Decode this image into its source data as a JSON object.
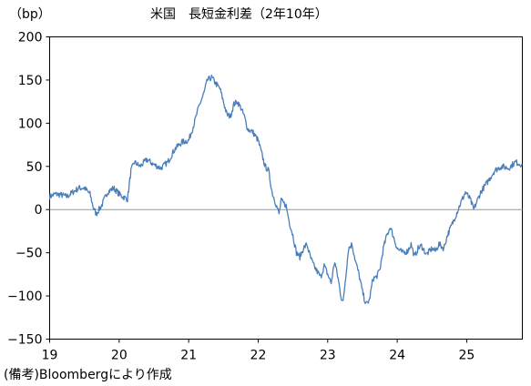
{
  "chart_data": {
    "type": "line",
    "title": "米国　長短金利差（2年10年）",
    "unit": "（bp）",
    "xlabel": "",
    "ylabel": "",
    "source": "(備考)Bloombergにより作成",
    "xlim": [
      2019.0,
      2025.8
    ],
    "ylim": [
      -150,
      200
    ],
    "yticks": [
      200,
      150,
      100,
      50,
      0,
      -50,
      -100,
      -150
    ],
    "ytick_labels": [
      "200",
      "150",
      "100",
      "50",
      "0",
      "−50",
      "−100",
      "−150"
    ],
    "xticks": [
      2019,
      2020,
      2021,
      2022,
      2023,
      2024,
      2025
    ],
    "xtick_labels": [
      "19",
      "20",
      "21",
      "22",
      "23",
      "24",
      "25"
    ],
    "grid": false,
    "legend": "none",
    "line_color": "#4a7ebb",
    "zero_line_color": "#999999",
    "series": [
      {
        "x": [
          2019.0,
          2019.08,
          2019.17,
          2019.25,
          2019.33,
          2019.42,
          2019.5,
          2019.58,
          2019.63,
          2019.67,
          2019.75,
          2019.83,
          2019.92,
          2020.0,
          2020.05,
          2020.12,
          2020.17,
          2020.22,
          2020.3,
          2020.4,
          2020.5,
          2020.6,
          2020.7,
          2020.8,
          2020.9,
          2021.0,
          2021.08,
          2021.15,
          2021.22,
          2021.27,
          2021.33,
          2021.4,
          2021.45,
          2021.5,
          2021.55,
          2021.6,
          2021.65,
          2021.7,
          2021.75,
          2021.8,
          2021.85,
          2021.92,
          2022.0,
          2022.05,
          2022.1,
          2022.15,
          2022.2,
          2022.25,
          2022.3,
          2022.33,
          2022.4,
          2022.45,
          2022.5,
          2022.55,
          2022.6,
          2022.65,
          2022.7,
          2022.75,
          2022.8,
          2022.85,
          2022.9,
          2022.95,
          2023.0,
          2023.05,
          2023.1,
          2023.15,
          2023.19,
          2023.22,
          2023.3,
          2023.35,
          2023.4,
          2023.45,
          2023.5,
          2023.55,
          2023.6,
          2023.65,
          2023.7,
          2023.75,
          2023.8,
          2023.85,
          2023.9,
          2024.0,
          2024.08,
          2024.15,
          2024.2,
          2024.25,
          2024.3,
          2024.35,
          2024.42,
          2024.5,
          2024.55,
          2024.6,
          2024.67,
          2024.72,
          2024.8,
          2024.9,
          2024.98,
          2025.05,
          2025.1,
          2025.2,
          2025.3,
          2025.4,
          2025.5,
          2025.6,
          2025.7,
          2025.8
        ],
        "values": [
          15,
          18,
          17,
          15,
          20,
          25,
          25,
          18,
          2,
          -5,
          5,
          20,
          25,
          18,
          15,
          12,
          45,
          55,
          50,
          58,
          52,
          48,
          55,
          70,
          78,
          80,
          100,
          120,
          135,
          150,
          153,
          145,
          140,
          125,
          110,
          108,
          122,
          125,
          118,
          108,
          93,
          90,
          80,
          65,
          50,
          45,
          20,
          8,
          -5,
          10,
          5,
          -15,
          -30,
          -50,
          -55,
          -45,
          -40,
          -55,
          -65,
          -72,
          -78,
          -65,
          -75,
          -85,
          -60,
          -80,
          -100,
          -108,
          -45,
          -40,
          -60,
          -75,
          -95,
          -110,
          -105,
          -80,
          -78,
          -70,
          -45,
          -30,
          -20,
          -45,
          -50,
          -48,
          -40,
          -55,
          -45,
          -42,
          -52,
          -45,
          -48,
          -40,
          -45,
          -30,
          -15,
          5,
          20,
          12,
          0,
          20,
          32,
          45,
          50,
          48,
          55,
          52
        ]
      }
    ]
  }
}
